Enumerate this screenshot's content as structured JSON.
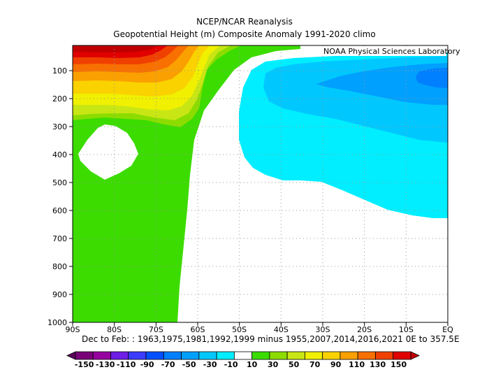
{
  "titles": {
    "line1": "NCEP/NCAR Reanalysis",
    "line2": "Geopotential Height (m) Composite Anomaly 1991-2020 climo"
  },
  "credit": "NOAA Physical Sciences Laboratory",
  "footer": "Dec to Feb: : 1963,1975,1981,1992,1999 minus 1955,2007,2014,2016,2021 0E to 357.5E",
  "chart_data": {
    "type": "heatmap",
    "subtype": "filled latitude-pressure contour plot",
    "x_ticks": [
      "90S",
      "80S",
      "70S",
      "60S",
      "50S",
      "40S",
      "30S",
      "20S",
      "10S",
      "EQ"
    ],
    "x_range": [
      -90,
      0
    ],
    "y_ticks": [
      "100",
      "200",
      "300",
      "400",
      "500",
      "600",
      "700",
      "800",
      "900",
      "1000"
    ],
    "y_range": [
      10,
      1000
    ],
    "grid": true,
    "colorbar_labels": [
      "-150",
      "-130",
      "-110",
      "-90",
      "-70",
      "-50",
      "-30",
      "-10",
      "10",
      "30",
      "50",
      "70",
      "90",
      "110",
      "130",
      "150"
    ],
    "colorbar_colors": [
      "#5a005a",
      "#780078",
      "#9600a0",
      "#6e1ee6",
      "#3c3cff",
      "#0050ff",
      "#0080ff",
      "#00a0ff",
      "#00c8ff",
      "#00eeff",
      "#ffffff",
      "#3cdc00",
      "#8cdc00",
      "#c8e614",
      "#f0f000",
      "#fad200",
      "#faa000",
      "#f87000",
      "#f04000",
      "#e00000",
      "#c00000"
    ],
    "regions": [
      {
        "level": "10 to 30",
        "color": "#3cdc00",
        "description": "positive anomaly over high southern latitudes 90S-65S, surface to top"
      },
      {
        "level": "30 to 150+",
        "color": "#e00000",
        "description": "stacked positive anomalies near 90S-70S, 10-300 hPa, peak >150 near top"
      },
      {
        "level": "-10 to -30",
        "color": "#00eeff",
        "description": "negative anomaly 50S-EQ, 50-620 hPa"
      },
      {
        "level": "-30 to -50",
        "color": "#00c8ff",
        "description": "negative anomaly 45S-EQ, 80-300 hPa"
      },
      {
        "level": "-50 to -70",
        "color": "#00a0ff",
        "description": "negative anomaly 30S-EQ, 90-150 hPa"
      },
      {
        "level": "-70 to -90",
        "color": "#0080ff",
        "description": "negative anomaly core near 5S-EQ, 100-120 hPa"
      }
    ]
  }
}
